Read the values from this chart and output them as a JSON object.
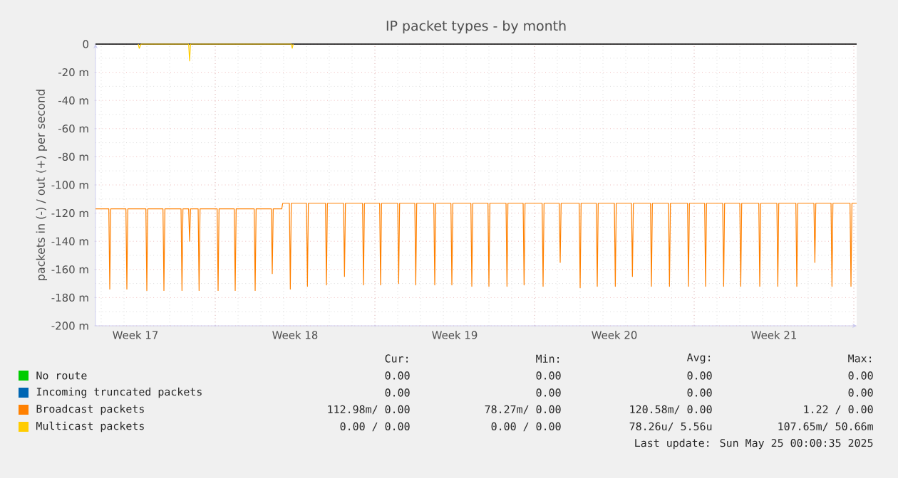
{
  "chart_data": {
    "type": "line",
    "title": "IP packet types - by month",
    "ylabel": "packets in (-) / out (+) per second",
    "xlim": [
      "2025-04-22T18:00",
      "2025-05-26T03:00"
    ],
    "xticks": [
      {
        "value": "2025-04-24T12:00",
        "label": "Week 17"
      },
      {
        "value": "2025-04-28T00:00",
        "label": null
      },
      {
        "value": "2025-05-01T12:00",
        "label": "Week 18"
      },
      {
        "value": "2025-05-05T00:00",
        "label": null
      },
      {
        "value": "2025-05-08T12:00",
        "label": "Week 19"
      },
      {
        "value": "2025-05-12T00:00",
        "label": null
      },
      {
        "value": "2025-05-15T12:00",
        "label": "Week 20"
      },
      {
        "value": "2025-05-19T00:00",
        "label": null
      },
      {
        "value": "2025-05-22T12:00",
        "label": "Week 21"
      },
      {
        "value": "2025-05-26T00:00",
        "label": null
      }
    ],
    "ylim": [
      -200,
      0
    ],
    "yticks": [
      0,
      {
        "value": -20,
        "label": "-20 m"
      },
      {
        "value": -40,
        "label": "-40 m"
      },
      {
        "value": -60,
        "label": "-60 m"
      },
      {
        "value": -80,
        "label": "-80 m"
      },
      {
        "value": -100,
        "label": "-100 m"
      },
      {
        "value": -120,
        "label": "-120 m"
      },
      {
        "value": -140,
        "label": "-140 m"
      },
      {
        "value": -160,
        "label": "-160 m"
      },
      {
        "value": -180,
        "label": "-180 m"
      },
      {
        "value": -200,
        "label": "-200 m"
      }
    ],
    "grid": true,
    "legend": "bottom",
    "ref_lines": [
      {
        "axis": "y",
        "value": 0,
        "color": "#000000"
      }
    ],
    "series": [
      {
        "name": "No route",
        "color": "#00cc00"
      },
      {
        "name": "Incoming truncated packets",
        "color": "#0066b3"
      },
      {
        "name": "Broadcast packets",
        "color": "#ff8000",
        "x": [
          "2025-04-22T18:00",
          "2025-04-23T08:00",
          "2025-04-23T09:00",
          "2025-04-23T10:00",
          "2025-04-24T02:00",
          "2025-04-24T03:00",
          "2025-04-24T04:00",
          "2025-04-24T23:00",
          "2025-04-25T00:00",
          "2025-04-25T01:00",
          "2025-04-25T17:00",
          "2025-04-25T18:00",
          "2025-04-25T19:00",
          "2025-04-26T12:00",
          "2025-04-26T13:00",
          "2025-04-26T14:00",
          "2025-04-26T20:00",
          "2025-04-26T21:00",
          "2025-04-26T22:00",
          "2025-04-27T06:00",
          "2025-04-27T07:00",
          "2025-04-27T08:00",
          "2025-04-28T02:00",
          "2025-04-28T03:00",
          "2025-04-28T04:00",
          "2025-04-28T20:00",
          "2025-04-28T21:00",
          "2025-04-28T22:00",
          "2025-04-29T17:00",
          "2025-04-29T18:00",
          "2025-04-29T19:00",
          "2025-04-30T11:00",
          "2025-04-30T12:00",
          "2025-04-30T13:00",
          "2025-04-30T22:00",
          "2025-04-30T23:00",
          "2025-05-01T06:00",
          "2025-05-01T07:00",
          "2025-05-01T08:00",
          "2025-05-02T00:00",
          "2025-05-02T01:00",
          "2025-05-02T02:00",
          "2025-05-02T20:00",
          "2025-05-02T21:00",
          "2025-05-02T22:00",
          "2025-05-03T15:00",
          "2025-05-03T16:00",
          "2025-05-03T17:00",
          "2025-05-04T11:00",
          "2025-05-04T12:00",
          "2025-05-04T13:00",
          "2025-05-05T05:00",
          "2025-05-05T06:00",
          "2025-05-05T07:00",
          "2025-05-06T00:00",
          "2025-05-06T01:00",
          "2025-05-06T02:00",
          "2025-05-06T18:00",
          "2025-05-06T19:00",
          "2025-05-06T20:00",
          "2025-05-07T14:00",
          "2025-05-07T15:00",
          "2025-05-07T16:00",
          "2025-05-08T08:00",
          "2025-05-08T09:00",
          "2025-05-08T10:00",
          "2025-05-09T05:00",
          "2025-05-09T06:00",
          "2025-05-09T07:00",
          "2025-05-09T23:00",
          "2025-05-10T00:00",
          "2025-05-10T01:00",
          "2025-05-10T18:00",
          "2025-05-10T19:00",
          "2025-05-10T20:00",
          "2025-05-11T12:00",
          "2025-05-11T13:00",
          "2025-05-11T14:00",
          "2025-05-12T08:00",
          "2025-05-12T09:00",
          "2025-05-12T10:00",
          "2025-05-13T02:00",
          "2025-05-13T03:00",
          "2025-05-13T04:00",
          "2025-05-13T23:00",
          "2025-05-14T00:00",
          "2025-05-14T01:00",
          "2025-05-14T17:00",
          "2025-05-14T18:00",
          "2025-05-14T19:00",
          "2025-05-15T12:00",
          "2025-05-15T13:00",
          "2025-05-15T14:00",
          "2025-05-16T06:00",
          "2025-05-16T07:00",
          "2025-05-16T08:00",
          "2025-05-17T02:00",
          "2025-05-17T03:00",
          "2025-05-17T04:00",
          "2025-05-17T21:00",
          "2025-05-17T22:00",
          "2025-05-17T23:00",
          "2025-05-18T17:00",
          "2025-05-18T18:00",
          "2025-05-18T19:00",
          "2025-05-19T11:00",
          "2025-05-19T12:00",
          "2025-05-19T13:00",
          "2025-05-20T06:00",
          "2025-05-20T07:00",
          "2025-05-20T08:00",
          "2025-05-21T00:00",
          "2025-05-21T01:00",
          "2025-05-21T02:00",
          "2025-05-21T20:00",
          "2025-05-21T21:00",
          "2025-05-21T22:00",
          "2025-05-22T15:00",
          "2025-05-22T16:00",
          "2025-05-22T17:00",
          "2025-05-23T11:00",
          "2025-05-23T12:00",
          "2025-05-23T13:00",
          "2025-05-24T06:00",
          "2025-05-24T07:00",
          "2025-05-24T08:00",
          "2025-05-25T00:00",
          "2025-05-25T01:00",
          "2025-05-25T02:00",
          "2025-05-25T20:00",
          "2025-05-25T21:00",
          "2025-05-25T22:00",
          "2025-05-26T03:00"
        ],
        "values": [
          -117,
          -117,
          -174,
          -117,
          -117,
          -174,
          -117,
          -117,
          -175,
          -117,
          -117,
          -175,
          -117,
          -117,
          -175,
          -117,
          -117,
          -140,
          -117,
          -117,
          -175,
          -117,
          -117,
          -175,
          -117,
          -117,
          -175,
          -117,
          -117,
          -175,
          -117,
          -117,
          -163,
          -117,
          -117,
          -113,
          -113,
          -174,
          -113,
          -113,
          -172,
          -113,
          -113,
          -171,
          -113,
          -113,
          -165,
          -113,
          -113,
          -171,
          -113,
          -113,
          -171,
          -113,
          -113,
          -170,
          -113,
          -113,
          -171,
          -113,
          -113,
          -171,
          -113,
          -113,
          -171,
          -113,
          -113,
          -172,
          -113,
          -113,
          -172,
          -113,
          -113,
          -172,
          -113,
          -113,
          -171,
          -113,
          -113,
          -172,
          -113,
          -113,
          -155,
          -113,
          -113,
          -173,
          -113,
          -113,
          -172,
          -113,
          -113,
          -172,
          -113,
          -113,
          -165,
          -113,
          -113,
          -172,
          -113,
          -113,
          -172,
          -113,
          -113,
          -172,
          -113,
          -113,
          -172,
          -113,
          -113,
          -172,
          -113,
          -113,
          -172,
          -113,
          -113,
          -172,
          -113,
          -113,
          -172,
          -113,
          -113,
          -172,
          -113,
          -113,
          -155,
          -113,
          -113,
          -172,
          -113,
          -113,
          -172,
          -113,
          -113
        ]
      },
      {
        "name": "Multicast packets",
        "color": "#ffcc00",
        "x": [
          "2025-04-24T15:00",
          "2025-04-24T16:00",
          "2025-04-24T18:00",
          "2025-04-26T20:00",
          "2025-04-26T21:00",
          "2025-04-26T22:00",
          "2025-05-01T08:00",
          "2025-05-01T09:00",
          "2025-05-01T10:00"
        ],
        "values": [
          0,
          -3,
          0,
          0,
          -12,
          0,
          0,
          -3,
          0
        ]
      }
    ],
    "annotations": [
      "Cur:",
      "Min:",
      "Avg:",
      "Max:",
      "0.00",
      "0.00",
      "0.00",
      "0.00",
      "0.00",
      "0.00",
      "0.00",
      "0.00",
      "112.98m/  0.00",
      "78.27m/  0.00",
      "120.58m/  0.00",
      "1.22 /  0.00",
      "0.00 /  0.00",
      "0.00 /  0.00",
      "78.26u/  5.56u",
      "107.65m/ 50.66m",
      "Last update: Sun May 25 00:00:35 2025"
    ]
  }
}
